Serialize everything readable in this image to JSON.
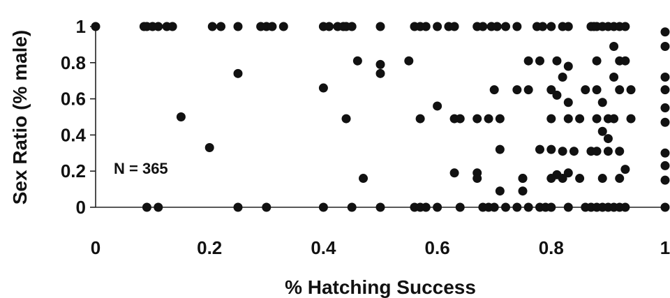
{
  "chart_data": {
    "type": "scatter",
    "title": "",
    "xlabel": "% Hatching Success",
    "ylabel": "Sex Ratio (% male)",
    "xlim": [
      0,
      1
    ],
    "ylim": [
      0,
      1
    ],
    "xticks": [
      "0",
      "0.2",
      "0.4",
      "0.6",
      "0.8",
      "1"
    ],
    "yticks": [
      "0",
      "0.2",
      "0.4",
      "0.6",
      "0.8",
      "1"
    ],
    "grid": false,
    "annotation": "N = 365",
    "x": [
      0,
      0.085,
      0.09,
      0.1,
      0.11,
      0.125,
      0.135,
      0.205,
      0.22,
      0.25,
      0.29,
      0.3,
      0.31,
      0.33,
      0.4,
      0.41,
      0.425,
      0.435,
      0.44,
      0.45,
      0.5,
      0.56,
      0.57,
      0.58,
      0.6,
      0.62,
      0.63,
      0.67,
      0.68,
      0.695,
      0.705,
      0.72,
      0.74,
      0.775,
      0.785,
      0.8,
      0.82,
      0.83,
      0.87,
      0.875,
      0.88,
      0.89,
      0.9,
      0.91,
      0.92,
      0.93,
      1.0,
      0.46,
      0.5,
      0.55,
      0.76,
      0.78,
      0.81,
      0.83,
      0.88,
      0.92,
      0.93,
      1.0,
      0.91,
      0.25,
      0.5,
      0.82,
      0.91,
      1.0,
      0.4,
      0.7,
      0.74,
      0.76,
      0.8,
      0.86,
      0.88,
      0.92,
      0.94,
      1.0,
      0.6,
      0.81,
      0.83,
      0.89,
      1.0,
      0.15,
      0.44,
      0.57,
      0.63,
      0.64,
      0.67,
      0.69,
      0.71,
      0.8,
      0.83,
      0.85,
      0.88,
      0.9,
      0.91,
      0.94,
      1.0,
      0.89,
      0.9,
      0.2,
      0.71,
      0.78,
      0.8,
      0.82,
      0.84,
      0.87,
      0.88,
      0.9,
      0.92,
      1.0,
      0.63,
      0.67,
      0.75,
      0.81,
      0.83,
      0.93,
      1.0,
      0.47,
      0.67,
      0.75,
      0.8,
      0.82,
      0.85,
      0.89,
      0.92,
      1.0,
      0.71,
      0.75,
      0.09,
      0.11,
      0.25,
      0.3,
      0.4,
      0.45,
      0.5,
      0.56,
      0.57,
      0.58,
      0.6,
      0.64,
      0.68,
      0.69,
      0.7,
      0.72,
      0.74,
      0.76,
      0.78,
      0.79,
      0.8,
      0.83,
      0.86,
      0.87,
      0.88,
      0.89,
      0.9,
      0.91,
      0.92,
      0.93,
      1.0
    ],
    "y": [
      1,
      1,
      1,
      1,
      1,
      1,
      1,
      1,
      1,
      1,
      1,
      1,
      1,
      1,
      1,
      1,
      1,
      1,
      1,
      1,
      1,
      1,
      1,
      1,
      1,
      1,
      1,
      1,
      1,
      1,
      1,
      1,
      1,
      1,
      1,
      1,
      1,
      1,
      1,
      1,
      1,
      1,
      1,
      1,
      1,
      1,
      0.97,
      0.81,
      0.79,
      0.81,
      0.81,
      0.81,
      0.81,
      0.78,
      0.81,
      0.81,
      0.81,
      0.89,
      0.89,
      0.74,
      0.74,
      0.72,
      0.72,
      0.72,
      0.66,
      0.65,
      0.65,
      0.65,
      0.65,
      0.65,
      0.65,
      0.65,
      0.65,
      0.65,
      0.56,
      0.62,
      0.58,
      0.58,
      0.55,
      0.5,
      0.49,
      0.49,
      0.49,
      0.49,
      0.49,
      0.49,
      0.49,
      0.49,
      0.49,
      0.49,
      0.49,
      0.49,
      0.49,
      0.49,
      0.47,
      0.42,
      0.38,
      0.33,
      0.32,
      0.32,
      0.32,
      0.31,
      0.31,
      0.31,
      0.31,
      0.31,
      0.31,
      0.3,
      0.19,
      0.19,
      0.16,
      0.18,
      0.19,
      0.21,
      0.23,
      0.16,
      0.16,
      0.16,
      0.16,
      0.16,
      0.16,
      0.16,
      0.16,
      0.15,
      0.09,
      0.09,
      0,
      0,
      0,
      0,
      0,
      0,
      0,
      0,
      0,
      0,
      0,
      0,
      0,
      0,
      0,
      0,
      0,
      0,
      0,
      0,
      0,
      0,
      0,
      0,
      0,
      0,
      0,
      0,
      0,
      0,
      0
    ]
  }
}
